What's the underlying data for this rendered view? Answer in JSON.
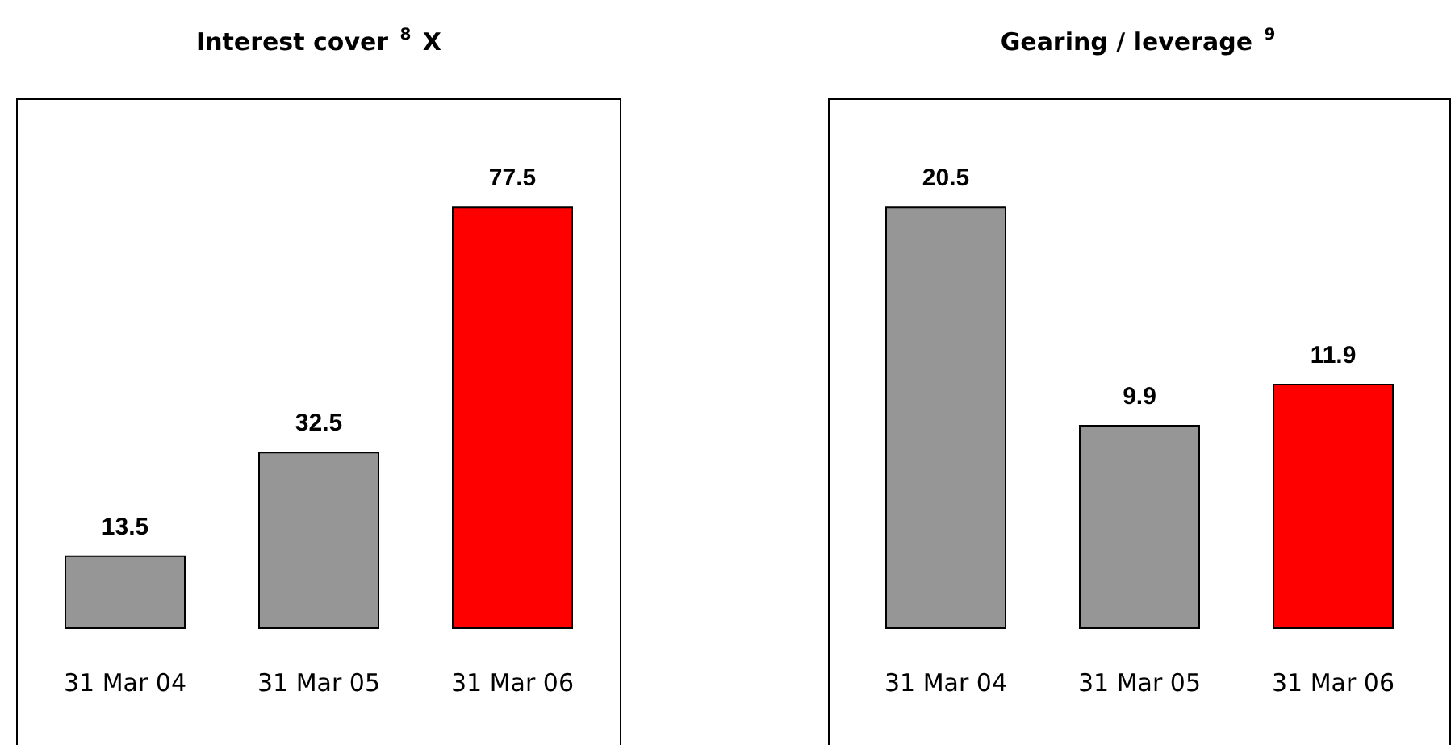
{
  "chart_data": [
    {
      "type": "bar",
      "title": "Interest cover $^{8}$ X",
      "categories": [
        "31 Mar 04",
        "31 Mar 05",
        "31 Mar 06"
      ],
      "values": [
        13.5,
        32.5,
        77.5
      ],
      "colors": [
        "#969696",
        "#969696",
        "#ff0000"
      ],
      "data_labels": true
    },
    {
      "type": "bar",
      "title": "Gearing / leverage $^{9}$",
      "categories": [
        "31 Mar 04",
        "31 Mar 05",
        "31 Mar 06"
      ],
      "values": [
        20.5,
        9.9,
        11.9
      ],
      "colors": [
        "#969696",
        "#969696",
        "#ff0000"
      ],
      "data_labels": true
    }
  ]
}
